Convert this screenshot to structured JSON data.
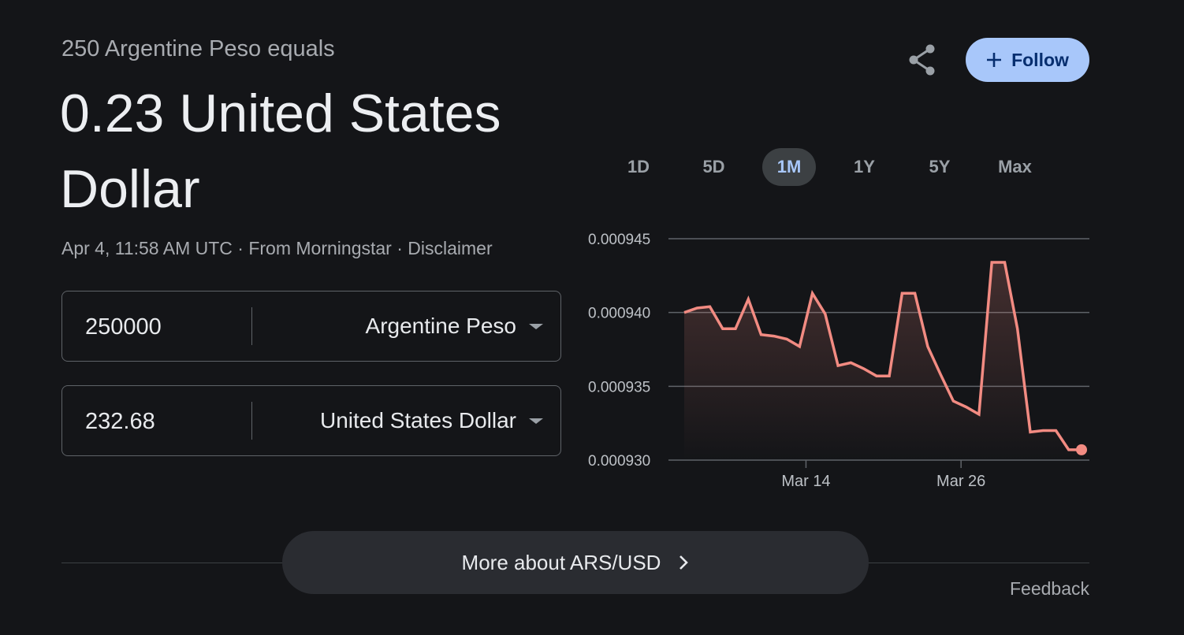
{
  "header": {
    "subtitle": "250 Argentine Peso equals",
    "value": "0.23 United States Dollar",
    "timestamp": "Apr 4, 11:58 AM UTC",
    "sep1": " · ",
    "source": "From Morningstar",
    "sep2": " · ",
    "disclaimer": "Disclaimer"
  },
  "actions": {
    "share_icon": "share-icon",
    "follow_label": "Follow",
    "follow_icon": "plus-icon",
    "follow_color": "#a8c7fa"
  },
  "converter": {
    "from": {
      "amount": "250000",
      "currency": "Argentine Peso"
    },
    "to": {
      "amount": "232.68",
      "currency": "United States Dollar"
    }
  },
  "ranges": {
    "options": [
      "1D",
      "5D",
      "1M",
      "1Y",
      "5Y",
      "Max"
    ],
    "selected": "1M"
  },
  "chart_data": {
    "type": "line",
    "line_color": "#f28b82",
    "ylim": [
      0.00093,
      0.000945
    ],
    "y_ticks": [
      "0.000945",
      "0.000940",
      "0.000935",
      "0.000930"
    ],
    "x_ticks": [
      "Mar 14",
      "Mar 26"
    ],
    "grid": true,
    "values": [
      0.00094,
      0.0009403,
      0.0009404,
      0.0009389,
      0.0009389,
      0.0009409,
      0.0009385,
      0.0009384,
      0.0009382,
      0.0009377,
      0.0009413,
      0.0009399,
      0.0009364,
      0.0009366,
      0.0009362,
      0.0009357,
      0.0009357,
      0.0009413,
      0.0009413,
      0.0009377,
      0.0009358,
      0.000934,
      0.0009336,
      0.0009331,
      0.0009434,
      0.0009434,
      0.0009389,
      0.0009319,
      0.000932,
      0.000932,
      0.0009307,
      0.0009307
    ]
  },
  "footer": {
    "more_label": "More about ARS/USD",
    "more_icon": "chevron-right-icon",
    "feedback": "Feedback"
  }
}
